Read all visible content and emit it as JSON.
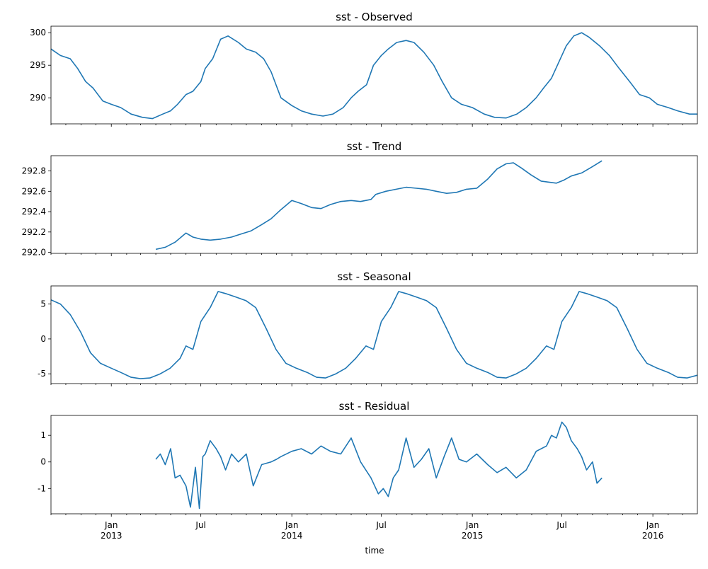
{
  "figure": {
    "xlabel": "time",
    "x_ticks": [
      {
        "date": "2013-01-01",
        "label": "Jan",
        "label2": "2013"
      },
      {
        "date": "2013-07-01",
        "label": "Jul",
        "label2": ""
      },
      {
        "date": "2014-01-01",
        "label": "Jan",
        "label2": "2014"
      },
      {
        "date": "2014-07-01",
        "label": "Jul",
        "label2": ""
      },
      {
        "date": "2015-01-01",
        "label": "Jan",
        "label2": "2015"
      },
      {
        "date": "2015-07-01",
        "label": "Jul",
        "label2": ""
      },
      {
        "date": "2016-01-01",
        "label": "Jan",
        "label2": "2016"
      }
    ],
    "xlim": [
      "2012-09-01",
      "2016-03-31"
    ],
    "line_color": "#1f77b4"
  },
  "chart_data": [
    {
      "type": "line",
      "title": "sst - Observed",
      "ylim": [
        286,
        301
      ],
      "yticks": [
        290,
        295,
        300
      ],
      "series": [
        {
          "x": [
            "2012-09-01",
            "2012-09-20",
            "2012-10-10",
            "2012-10-25",
            "2012-11-10",
            "2012-11-25",
            "2012-12-15",
            "2013-01-01",
            "2013-01-20",
            "2013-02-10",
            "2013-03-05",
            "2013-03-25",
            "2013-04-15",
            "2013-05-01",
            "2013-05-15",
            "2013-06-01",
            "2013-06-15",
            "2013-07-01",
            "2013-07-10",
            "2013-07-25",
            "2013-08-10",
            "2013-08-25",
            "2013-09-15",
            "2013-10-01",
            "2013-10-20",
            "2013-11-05",
            "2013-11-20",
            "2013-12-10",
            "2014-01-01",
            "2014-01-20",
            "2014-02-10",
            "2014-03-05",
            "2014-03-25",
            "2014-04-15",
            "2014-05-01",
            "2014-05-15",
            "2014-06-01",
            "2014-06-15",
            "2014-07-01",
            "2014-07-15",
            "2014-08-01",
            "2014-08-20",
            "2014-09-05",
            "2014-09-25",
            "2014-10-15",
            "2014-11-01",
            "2014-11-20",
            "2014-12-10",
            "2015-01-01",
            "2015-01-25",
            "2015-02-15",
            "2015-03-10",
            "2015-04-01",
            "2015-04-20",
            "2015-05-10",
            "2015-05-25",
            "2015-06-10",
            "2015-06-25",
            "2015-07-10",
            "2015-07-25",
            "2015-08-10",
            "2015-08-25",
            "2015-09-15",
            "2015-10-05",
            "2015-10-25",
            "2015-11-15",
            "2015-12-05",
            "2015-12-25",
            "2016-01-10",
            "2016-02-01",
            "2016-02-20",
            "2016-03-15",
            "2016-03-31"
          ],
          "y": [
            297.5,
            296.5,
            296.0,
            294.5,
            292.5,
            291.5,
            289.5,
            289.0,
            288.5,
            287.5,
            287.0,
            286.8,
            287.5,
            288.0,
            289.0,
            290.5,
            291.0,
            292.5,
            294.5,
            296.0,
            299.0,
            299.5,
            298.5,
            297.5,
            297.0,
            296.0,
            294.0,
            290.0,
            288.8,
            288.0,
            287.5,
            287.2,
            287.5,
            288.5,
            290.0,
            291.0,
            292.0,
            295.0,
            296.5,
            297.5,
            298.5,
            298.8,
            298.5,
            297.0,
            295.0,
            292.5,
            290.0,
            289.0,
            288.5,
            287.5,
            287.0,
            286.9,
            287.5,
            288.5,
            290.0,
            291.5,
            293.0,
            295.5,
            298.0,
            299.5,
            300.0,
            299.3,
            298.0,
            296.5,
            294.5,
            292.5,
            290.5,
            290.0,
            289.0,
            288.5,
            288.0,
            287.5,
            287.5
          ]
        }
      ]
    },
    {
      "type": "line",
      "title": "sst - Trend",
      "ylim": [
        291.99,
        292.95
      ],
      "yticks": [
        "292.0",
        "292.2",
        "292.4",
        "292.6",
        "292.8"
      ],
      "series": [
        {
          "x": [
            "2013-04-01",
            "2013-04-20",
            "2013-05-10",
            "2013-06-01",
            "2013-06-15",
            "2013-07-01",
            "2013-07-20",
            "2013-08-10",
            "2013-09-01",
            "2013-09-20",
            "2013-10-10",
            "2013-10-31",
            "2013-11-20",
            "2013-12-10",
            "2014-01-01",
            "2014-01-20",
            "2014-02-10",
            "2014-03-01",
            "2014-03-20",
            "2014-04-10",
            "2014-05-01",
            "2014-05-20",
            "2014-06-10",
            "2014-06-20",
            "2014-07-10",
            "2014-07-31",
            "2014-08-20",
            "2014-09-10",
            "2014-09-30",
            "2014-10-20",
            "2014-11-10",
            "2014-11-30",
            "2014-12-20",
            "2015-01-10",
            "2015-02-01",
            "2015-02-20",
            "2015-03-10",
            "2015-03-25",
            "2015-04-10",
            "2015-04-30",
            "2015-05-20",
            "2015-06-05",
            "2015-06-20",
            "2015-07-05",
            "2015-07-20",
            "2015-08-10",
            "2015-08-31",
            "2015-09-20"
          ],
          "y": [
            292.03,
            292.05,
            292.1,
            292.19,
            292.15,
            292.13,
            292.12,
            292.13,
            292.15,
            292.18,
            292.21,
            292.27,
            292.33,
            292.42,
            292.51,
            292.48,
            292.44,
            292.43,
            292.47,
            292.5,
            292.51,
            292.5,
            292.52,
            292.57,
            292.6,
            292.62,
            292.64,
            292.63,
            292.62,
            292.6,
            292.58,
            292.59,
            292.62,
            292.63,
            292.72,
            292.82,
            292.87,
            292.88,
            292.83,
            292.76,
            292.7,
            292.69,
            292.68,
            292.71,
            292.75,
            292.78,
            292.84,
            292.9
          ]
        }
      ]
    },
    {
      "type": "line",
      "title": "sst - Seasonal",
      "ylim": [
        -6.4,
        7.6
      ],
      "yticks": [
        -5,
        0,
        5
      ],
      "series": [
        {
          "x": [
            "2012-09-01",
            "2012-09-20",
            "2012-10-10",
            "2012-10-31",
            "2012-11-20",
            "2012-12-10",
            "2013-01-01",
            "2013-01-20",
            "2013-02-10",
            "2013-03-01",
            "2013-03-20",
            "2013-04-10",
            "2013-04-30",
            "2013-05-20",
            "2013-06-01",
            "2013-06-15",
            "2013-07-01",
            "2013-07-20",
            "2013-08-05",
            "2013-08-20",
            "2013-09-10",
            "2013-09-30",
            "2013-10-20",
            "2013-11-10",
            "2013-11-30",
            "2013-12-20",
            "2014-01-10",
            "2014-02-01",
            "2014-02-20",
            "2014-03-10",
            "2014-03-31",
            "2014-04-20",
            "2014-05-10",
            "2014-05-31",
            "2014-06-15",
            "2014-07-01",
            "2014-07-20",
            "2014-08-05",
            "2014-08-20",
            "2014-09-10",
            "2014-09-30",
            "2014-10-20",
            "2014-11-10",
            "2014-11-30",
            "2014-12-20",
            "2015-01-10",
            "2015-02-01",
            "2015-02-20",
            "2015-03-10",
            "2015-03-31",
            "2015-04-20",
            "2015-05-10",
            "2015-05-31",
            "2015-06-15",
            "2015-07-01",
            "2015-07-20",
            "2015-08-05",
            "2015-08-20",
            "2015-09-10",
            "2015-09-30",
            "2015-10-20",
            "2015-11-10",
            "2015-11-30",
            "2015-12-20",
            "2016-01-10",
            "2016-02-01",
            "2016-02-20",
            "2016-03-10",
            "2016-03-31"
          ],
          "y": [
            5.6,
            5.0,
            3.5,
            1.0,
            -2.0,
            -3.5,
            -4.2,
            -4.8,
            -5.5,
            -5.7,
            -5.6,
            -5.0,
            -4.2,
            -2.8,
            -1.0,
            -1.5,
            2.5,
            4.5,
            6.8,
            6.5,
            6.0,
            5.5,
            4.5,
            1.5,
            -1.5,
            -3.5,
            -4.2,
            -4.8,
            -5.5,
            -5.6,
            -5.0,
            -4.2,
            -2.8,
            -1.0,
            -1.5,
            2.5,
            4.5,
            6.8,
            6.5,
            6.0,
            5.5,
            4.5,
            1.5,
            -1.5,
            -3.5,
            -4.2,
            -4.8,
            -5.5,
            -5.6,
            -5.0,
            -4.2,
            -2.8,
            -1.0,
            -1.5,
            2.5,
            4.5,
            6.8,
            6.5,
            6.0,
            5.5,
            4.5,
            1.5,
            -1.5,
            -3.5,
            -4.2,
            -4.8,
            -5.5,
            -5.6,
            -5.2
          ]
        }
      ]
    },
    {
      "type": "line",
      "title": "sst - Residual",
      "ylim": [
        -1.95,
        1.75
      ],
      "yticks": [
        -1,
        0,
        1
      ],
      "series": [
        {
          "x": [
            "2013-04-01",
            "2013-04-10",
            "2013-04-20",
            "2013-05-01",
            "2013-05-10",
            "2013-05-20",
            "2013-06-01",
            "2013-06-10",
            "2013-06-20",
            "2013-06-28",
            "2013-07-05",
            "2013-07-10",
            "2013-07-20",
            "2013-08-01",
            "2013-08-10",
            "2013-08-20",
            "2013-09-01",
            "2013-09-15",
            "2013-10-01",
            "2013-10-15",
            "2013-11-01",
            "2013-11-20",
            "2013-12-01",
            "2013-12-10",
            "2014-01-01",
            "2014-01-20",
            "2014-02-10",
            "2014-03-01",
            "2014-03-20",
            "2014-04-10",
            "2014-05-01",
            "2014-05-20",
            "2014-06-10",
            "2014-06-25",
            "2014-07-05",
            "2014-07-15",
            "2014-07-25",
            "2014-08-05",
            "2014-08-20",
            "2014-09-05",
            "2014-09-20",
            "2014-10-05",
            "2014-10-20",
            "2014-11-05",
            "2014-11-20",
            "2014-12-05",
            "2014-12-20",
            "2015-01-10",
            "2015-02-01",
            "2015-02-20",
            "2015-03-10",
            "2015-03-31",
            "2015-04-20",
            "2015-05-10",
            "2015-05-31",
            "2015-06-10",
            "2015-06-20",
            "2015-07-01",
            "2015-07-10",
            "2015-07-20",
            "2015-08-01",
            "2015-08-10",
            "2015-08-20",
            "2015-09-01",
            "2015-09-10",
            "2015-09-20"
          ],
          "y": [
            0.1,
            0.3,
            -0.1,
            0.5,
            -0.6,
            -0.5,
            -0.9,
            -1.7,
            -0.2,
            -1.75,
            0.2,
            0.3,
            0.8,
            0.5,
            0.2,
            -0.3,
            0.3,
            0.0,
            0.3,
            -0.9,
            -0.1,
            0.0,
            0.1,
            0.2,
            0.4,
            0.5,
            0.3,
            0.6,
            0.4,
            0.3,
            0.9,
            0.0,
            -0.6,
            -1.2,
            -1.0,
            -1.3,
            -0.6,
            -0.3,
            0.9,
            -0.2,
            0.1,
            0.5,
            -0.6,
            0.2,
            0.9,
            0.1,
            0.0,
            0.3,
            -0.1,
            -0.4,
            -0.2,
            -0.6,
            -0.3,
            0.4,
            0.6,
            1.0,
            0.9,
            1.5,
            1.3,
            0.8,
            0.5,
            0.2,
            -0.3,
            0.0,
            -0.8,
            -0.6
          ]
        }
      ]
    }
  ]
}
